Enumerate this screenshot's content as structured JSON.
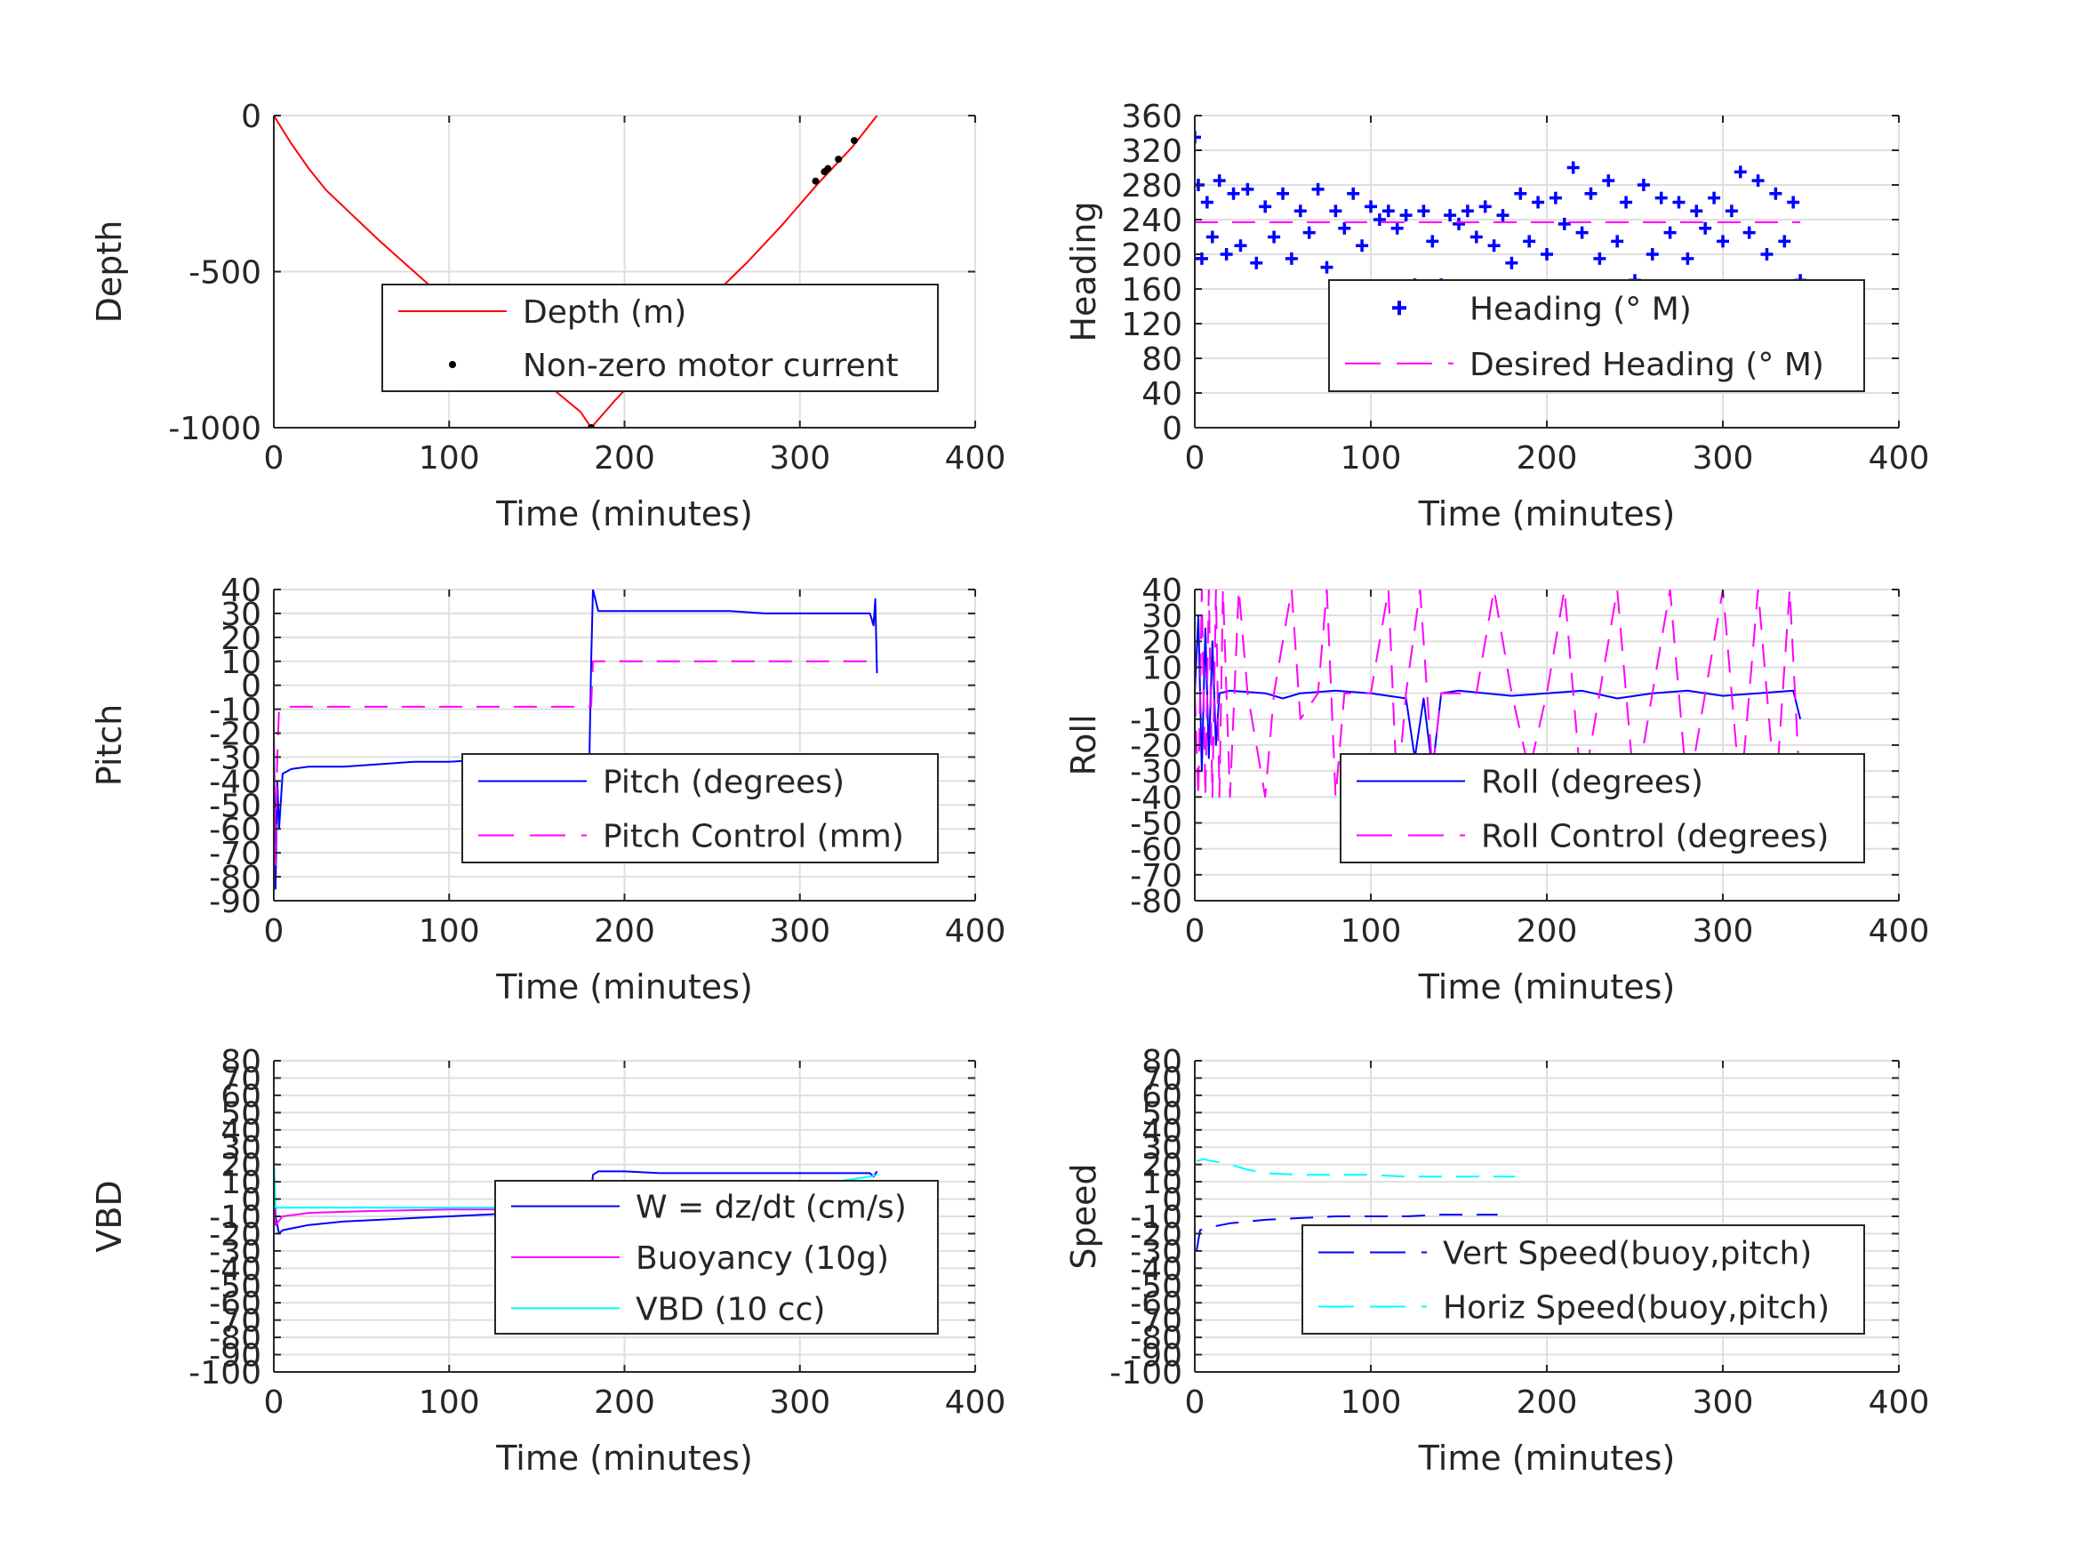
{
  "chart_data": [
    {
      "type": "line",
      "xlabel": "Time (minutes)",
      "ylabel": "Depth",
      "xlim": [
        0,
        400
      ],
      "ylim": [
        -1000,
        0
      ],
      "xticks": [
        0,
        100,
        200,
        300,
        400
      ],
      "xtick_labels": [
        "0",
        "100",
        "200",
        "300",
        "400"
      ],
      "yticks": [
        -1000,
        -500,
        0
      ],
      "ytick_labels": [
        "-1000",
        "-500",
        "0"
      ],
      "grid": true,
      "legend_position": "lower-right",
      "series": [
        {
          "name": "Depth (m)",
          "style": "solid",
          "color": "#ff0000",
          "x": [
            0,
            10,
            20,
            30,
            45,
            60,
            80,
            100,
            120,
            140,
            160,
            175,
            181,
            195,
            210,
            230,
            250,
            270,
            290,
            310,
            330,
            344
          ],
          "y": [
            0,
            -90,
            -170,
            -240,
            -320,
            -400,
            -500,
            -600,
            -695,
            -790,
            -880,
            -950,
            -1000,
            -910,
            -820,
            -700,
            -580,
            -470,
            -350,
            -220,
            -100,
            0
          ]
        },
        {
          "name": "Non-zero motor current",
          "style": "marker",
          "marker": "dot",
          "color": "#000000",
          "x": [
            181,
            309,
            314,
            316,
            322,
            331
          ],
          "y": [
            -1000,
            -210,
            -180,
            -170,
            -140,
            -80
          ]
        }
      ]
    },
    {
      "type": "scatter",
      "xlabel": "Time (minutes)",
      "ylabel": "Heading",
      "xlim": [
        0,
        400
      ],
      "ylim": [
        0,
        360
      ],
      "xticks": [
        0,
        100,
        200,
        300,
        400
      ],
      "xtick_labels": [
        "0",
        "100",
        "200",
        "300",
        "400"
      ],
      "yticks": [
        0,
        40,
        80,
        120,
        160,
        200,
        240,
        280,
        320,
        360
      ],
      "ytick_labels": [
        "0",
        "40",
        "80",
        "120",
        "160",
        "200",
        "240",
        "280",
        "320",
        "360"
      ],
      "grid": true,
      "legend_position": "lower-right",
      "series": [
        {
          "name": "Heading (° M)",
          "style": "marker",
          "marker": "plus",
          "color": "#0000ff",
          "x": [
            0,
            2,
            4,
            7,
            10,
            14,
            18,
            22,
            26,
            30,
            35,
            40,
            45,
            50,
            55,
            60,
            65,
            70,
            75,
            80,
            85,
            90,
            95,
            100,
            105,
            110,
            115,
            120,
            125,
            130,
            135,
            140,
            145,
            150,
            155,
            160,
            165,
            170,
            175,
            180,
            185,
            190,
            195,
            200,
            205,
            210,
            215,
            220,
            225,
            230,
            235,
            240,
            245,
            250,
            255,
            260,
            265,
            270,
            275,
            280,
            285,
            290,
            295,
            300,
            305,
            310,
            315,
            320,
            325,
            330,
            335,
            340,
            344
          ],
          "y": [
            335,
            280,
            195,
            260,
            220,
            285,
            200,
            270,
            210,
            275,
            190,
            255,
            220,
            270,
            195,
            250,
            225,
            275,
            185,
            250,
            230,
            270,
            210,
            255,
            240,
            250,
            230,
            245,
            165,
            250,
            215,
            165,
            245,
            235,
            250,
            220,
            255,
            210,
            245,
            190,
            270,
            215,
            260,
            200,
            265,
            235,
            300,
            225,
            270,
            195,
            285,
            215,
            260,
            170,
            280,
            200,
            265,
            225,
            260,
            195,
            250,
            230,
            265,
            215,
            250,
            295,
            225,
            285,
            200,
            270,
            215,
            260,
            170
          ]
        },
        {
          "name": "Desired Heading (° M)",
          "style": "dashed",
          "color": "#ff00ff",
          "x": [
            0,
            344
          ],
          "y": [
            237,
            237
          ]
        }
      ]
    },
    {
      "type": "line",
      "xlabel": "Time (minutes)",
      "ylabel": "Pitch",
      "xlim": [
        0,
        400
      ],
      "ylim": [
        -90,
        40
      ],
      "xticks": [
        0,
        100,
        200,
        300,
        400
      ],
      "xtick_labels": [
        "0",
        "100",
        "200",
        "300",
        "400"
      ],
      "yticks": [
        -90,
        -80,
        -70,
        -60,
        -50,
        -40,
        -30,
        -20,
        -10,
        0,
        10,
        20,
        30,
        40
      ],
      "ytick_labels": [
        "-90",
        "-80",
        "-70",
        "-60",
        "-50",
        "-40",
        "-30",
        "-20",
        "-10",
        "0",
        "10",
        "20",
        "30",
        "40"
      ],
      "grid": true,
      "legend_position": "lower-right",
      "series": [
        {
          "name": "Pitch (degrees)",
          "style": "solid",
          "color": "#0000ff",
          "x": [
            0,
            1,
            2,
            3,
            5,
            10,
            20,
            40,
            60,
            80,
            100,
            120,
            140,
            160,
            170,
            180,
            181,
            182,
            185,
            190,
            200,
            220,
            240,
            260,
            280,
            300,
            320,
            340,
            342,
            343,
            344
          ],
          "y": [
            -20,
            -85,
            -40,
            -60,
            -37,
            -35,
            -34,
            -34,
            -33,
            -32,
            -32,
            -31,
            -31,
            -31,
            -31,
            -31,
            10,
            40,
            31,
            31,
            31,
            31,
            31,
            31,
            30,
            30,
            30,
            30,
            25,
            36,
            5
          ]
        },
        {
          "name": "Pitch Control (mm)",
          "style": "dashed",
          "color": "#ff00ff",
          "x": [
            0,
            1,
            2,
            3,
            5,
            180,
            181,
            182,
            344
          ],
          "y": [
            -20,
            -75,
            -30,
            -10,
            -9,
            -9,
            -9,
            10,
            10
          ]
        }
      ]
    },
    {
      "type": "line",
      "xlabel": "Time (minutes)",
      "ylabel": "Roll",
      "xlim": [
        0,
        400
      ],
      "ylim": [
        -80,
        40
      ],
      "xticks": [
        0,
        100,
        200,
        300,
        400
      ],
      "xtick_labels": [
        "0",
        "100",
        "200",
        "300",
        "400"
      ],
      "yticks": [
        -80,
        -70,
        -60,
        -50,
        -40,
        -30,
        -20,
        -10,
        0,
        10,
        20,
        30,
        40
      ],
      "ytick_labels": [
        "-80",
        "-70",
        "-60",
        "-50",
        "-40",
        "-30",
        "-20",
        "-10",
        "0",
        "10",
        "20",
        "30",
        "40"
      ],
      "grid": true,
      "legend_position": "lower-right",
      "series": [
        {
          "name": "Roll (degrees)",
          "style": "solid",
          "color": "#0000ff",
          "x": [
            0,
            2,
            4,
            6,
            8,
            10,
            12,
            14,
            20,
            40,
            50,
            60,
            80,
            100,
            110,
            120,
            125,
            130,
            135,
            140,
            150,
            180,
            200,
            220,
            240,
            260,
            280,
            300,
            320,
            340,
            344
          ],
          "y": [
            0,
            30,
            -30,
            25,
            -25,
            20,
            -20,
            0,
            1,
            0,
            -2,
            0,
            1,
            0,
            -1,
            -2,
            -25,
            -2,
            -30,
            0,
            1,
            -1,
            0,
            1,
            -2,
            0,
            1,
            -1,
            0,
            1,
            -10
          ]
        },
        {
          "name": "Roll Control (degrees)",
          "style": "dashed",
          "color": "#ff00ff",
          "x": [
            0,
            2,
            4,
            6,
            8,
            10,
            12,
            14,
            16,
            20,
            25,
            30,
            40,
            45,
            55,
            60,
            70,
            75,
            80,
            85,
            100,
            110,
            115,
            120,
            128,
            135,
            140,
            150,
            160,
            170,
            180,
            190,
            200,
            210,
            220,
            230,
            240,
            250,
            260,
            270,
            280,
            290,
            300,
            310,
            320,
            330,
            338,
            344
          ],
          "y": [
            0,
            -40,
            40,
            -40,
            40,
            -40,
            40,
            -40,
            40,
            -40,
            40,
            0,
            -40,
            0,
            40,
            -10,
            0,
            40,
            -40,
            0,
            0,
            40,
            -40,
            0,
            40,
            -30,
            0,
            0,
            0,
            40,
            0,
            -30,
            0,
            40,
            -40,
            0,
            40,
            -40,
            0,
            40,
            -40,
            0,
            40,
            -40,
            40,
            -40,
            40,
            -40
          ]
        }
      ]
    },
    {
      "type": "line",
      "xlabel": "Time (minutes)",
      "ylabel": "VBD",
      "xlim": [
        0,
        400
      ],
      "ylim": [
        -100,
        80
      ],
      "xticks": [
        0,
        100,
        200,
        300,
        400
      ],
      "xtick_labels": [
        "0",
        "100",
        "200",
        "300",
        "400"
      ],
      "yticks": [
        -100,
        -90,
        -80,
        -70,
        -60,
        -50,
        -40,
        -30,
        -20,
        -10,
        0,
        10,
        20,
        30,
        40,
        50,
        60,
        70,
        80
      ],
      "ytick_labels": [
        "-100",
        "-90",
        "-80",
        "-70",
        "-60",
        "-50",
        "-40",
        "-30",
        "-20",
        "-10",
        "0",
        "10",
        "20",
        "30",
        "40",
        "50",
        "60",
        "70",
        "80"
      ],
      "grid": true,
      "legend_position": "lower-right",
      "series": [
        {
          "name": "W = dz/dt (cm/s)",
          "style": "solid",
          "color": "#0000ff",
          "x": [
            0,
            1,
            2,
            3,
            5,
            10,
            20,
            40,
            60,
            80,
            100,
            120,
            140,
            160,
            170,
            180,
            181,
            182,
            185,
            200,
            220,
            240,
            260,
            280,
            300,
            320,
            340,
            342,
            344
          ],
          "y": [
            20,
            -10,
            -15,
            -20,
            -18,
            -17,
            -15,
            -13,
            -12,
            -11,
            -10,
            -9,
            -8,
            -7,
            -6,
            -6,
            2,
            14,
            16,
            16,
            15,
            15,
            15,
            15,
            15,
            15,
            15,
            13,
            16
          ]
        },
        {
          "name": "Buoyancy (10g)",
          "style": "solid",
          "color": "#ff00ff",
          "x": [
            0,
            1,
            5,
            20,
            50,
            100,
            180,
            181,
            182,
            344
          ],
          "y": [
            5,
            -15,
            -10,
            -8,
            -7,
            -6,
            -6,
            5,
            9,
            10
          ]
        },
        {
          "name": "VBD (10 cc)",
          "style": "solid",
          "color": "#00ffff",
          "x": [
            0,
            1,
            5,
            180,
            181,
            182,
            300,
            340,
            344
          ],
          "y": [
            25,
            -5,
            -5,
            -5,
            5,
            7,
            7,
            13,
            14
          ]
        }
      ]
    },
    {
      "type": "line",
      "xlabel": "Time (minutes)",
      "ylabel": "Speed",
      "xlim": [
        0,
        400
      ],
      "ylim": [
        -100,
        80
      ],
      "xticks": [
        0,
        100,
        200,
        300,
        400
      ],
      "xtick_labels": [
        "0",
        "100",
        "200",
        "300",
        "400"
      ],
      "yticks": [
        -100,
        -90,
        -80,
        -70,
        -60,
        -50,
        -40,
        -30,
        -20,
        -10,
        0,
        10,
        20,
        30,
        40,
        50,
        60,
        70,
        80
      ],
      "ytick_labels": [
        "-100",
        "-90",
        "-80",
        "-70",
        "-60",
        "-50",
        "-40",
        "-30",
        "-20",
        "-10",
        "0",
        "10",
        "20",
        "30",
        "40",
        "50",
        "60",
        "70",
        "80"
      ],
      "grid": true,
      "legend_position": "lower-right",
      "series": [
        {
          "name": "Vert Speed(buoy,pitch)",
          "style": "dashed",
          "color": "#0000ff",
          "x": [
            1,
            3,
            6,
            10,
            20,
            40,
            60,
            80,
            100,
            120,
            140,
            160,
            172
          ],
          "y": [
            -30,
            -18,
            -17,
            -16,
            -14,
            -12,
            -11,
            -10,
            -10,
            -10,
            -9,
            -9,
            -9
          ]
        },
        {
          "name": "Horiz Speed(buoy,pitch)",
          "style": "dashed",
          "color": "#00ffff",
          "x": [
            1,
            5,
            10,
            20,
            30,
            40,
            60,
            80,
            100,
            120,
            140,
            160,
            182
          ],
          "y": [
            22,
            23,
            22,
            20,
            17,
            15,
            14,
            14,
            14,
            13,
            13,
            13,
            13
          ]
        }
      ]
    }
  ]
}
